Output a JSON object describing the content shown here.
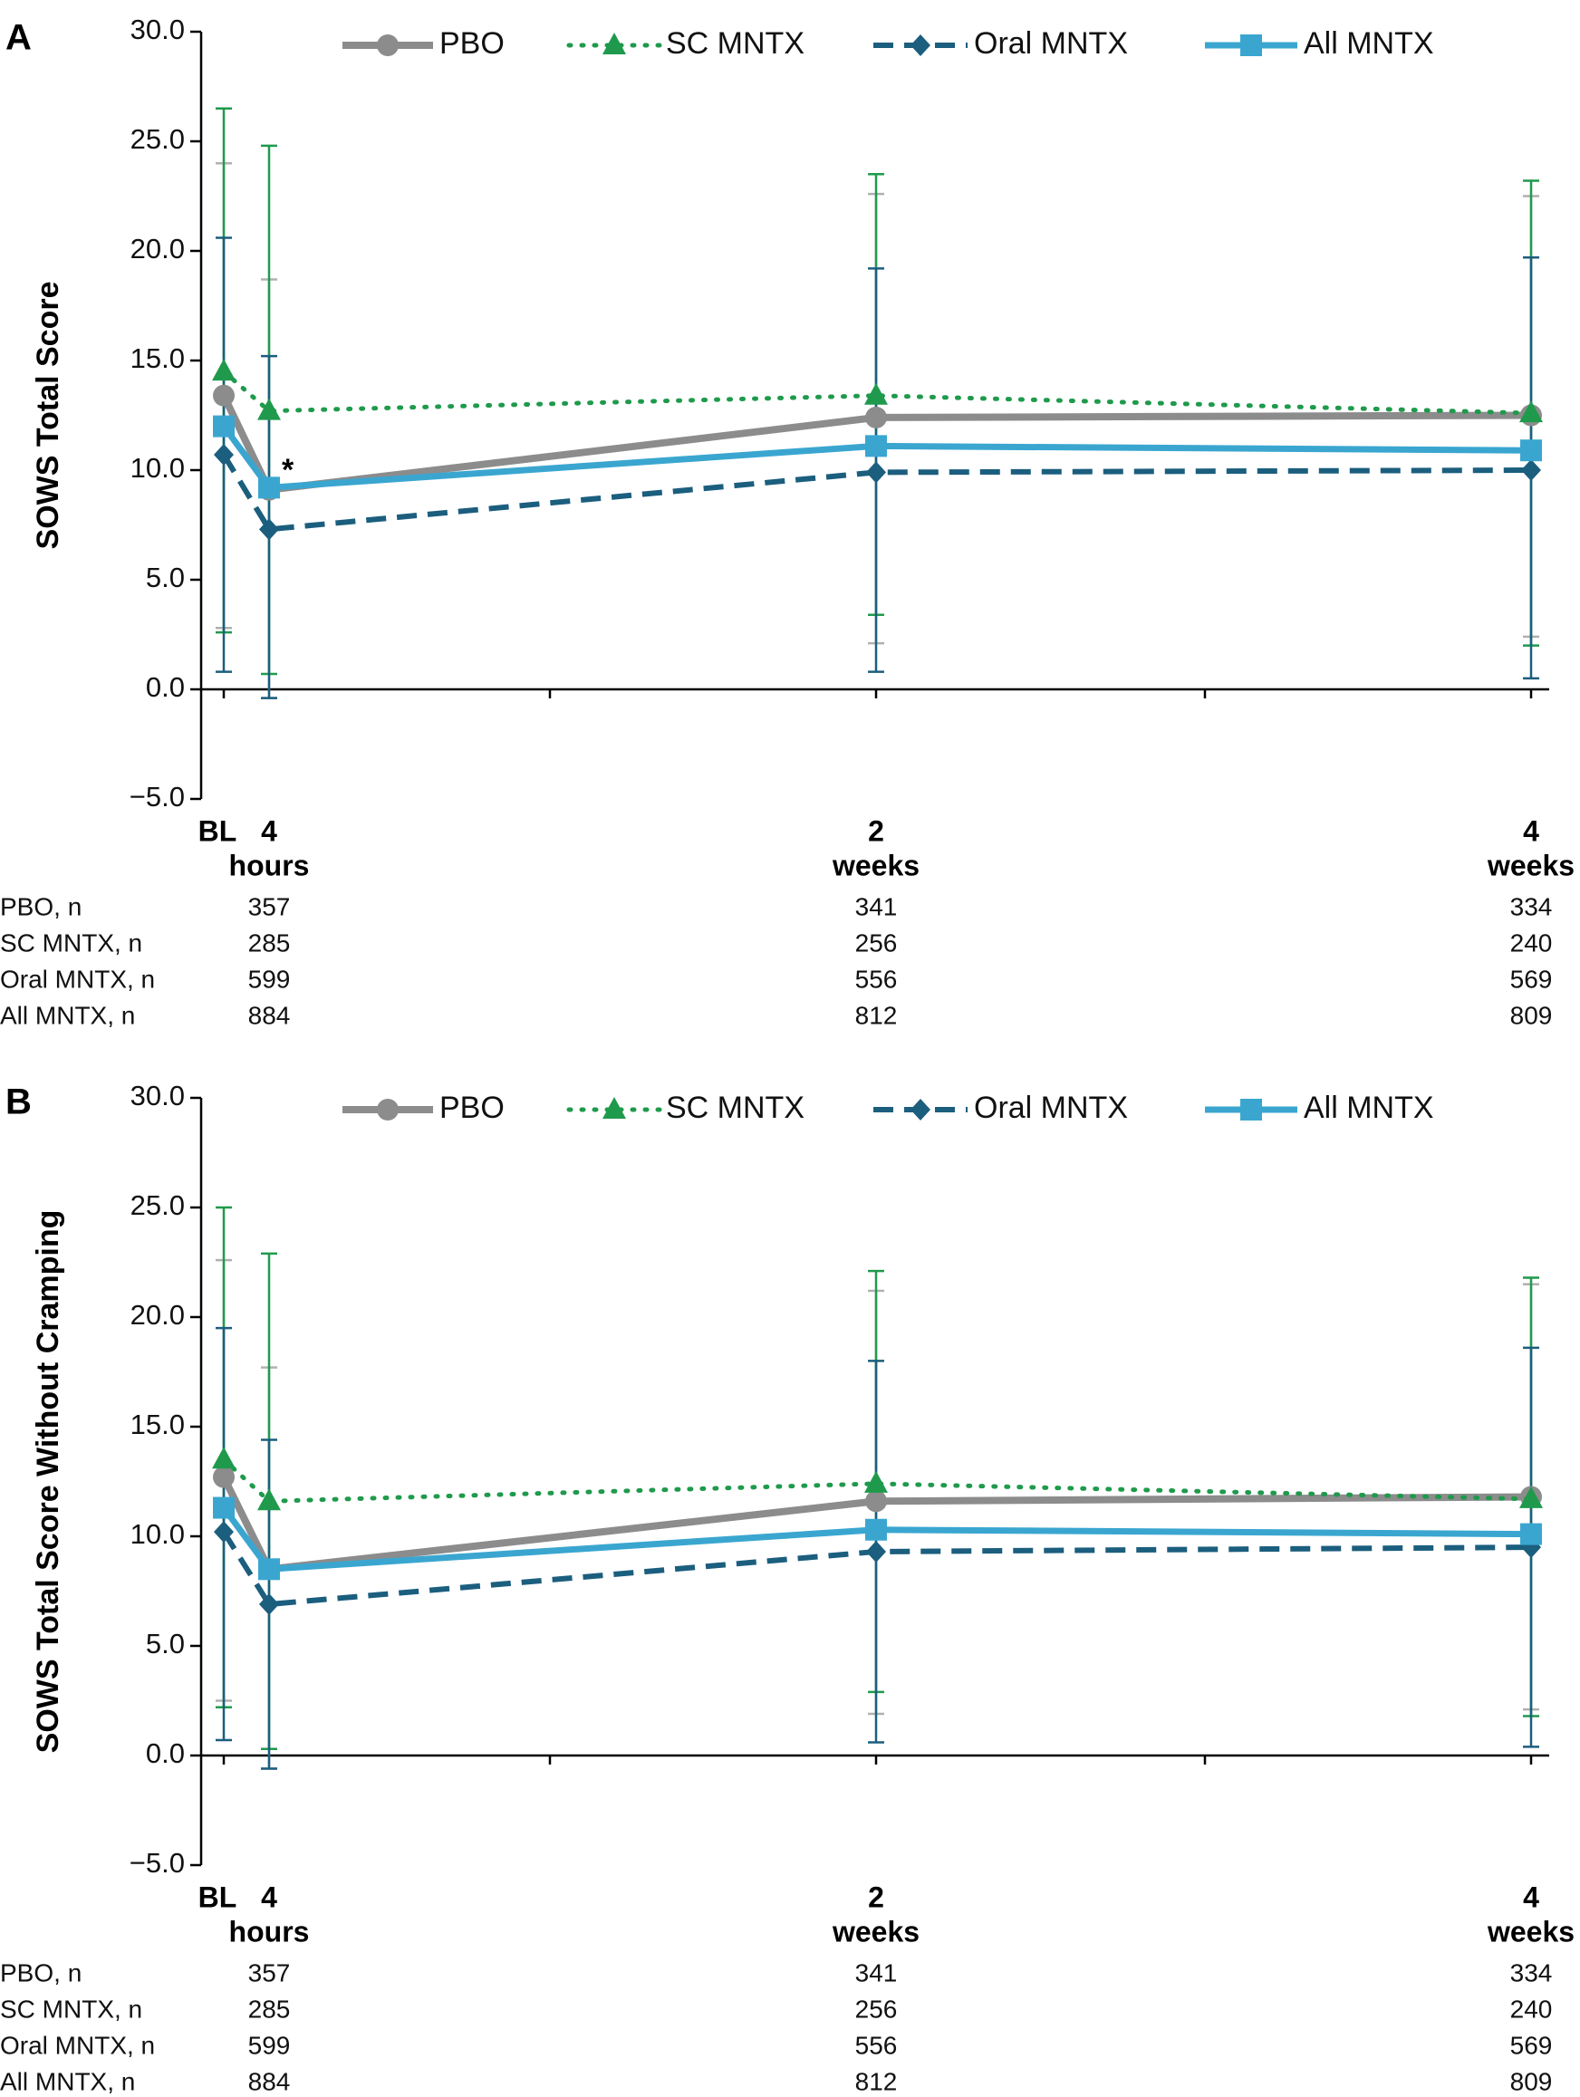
{
  "colors": {
    "pbo": "#8c8c8c",
    "pbo_err": "#b0b0b0",
    "sc": "#1f9a4c",
    "oral": "#1b5e7e",
    "all": "#3aa6d0",
    "axis": "#000000"
  },
  "chart_data": [
    {
      "panel": "A",
      "type": "line",
      "ylabel": "SOWS Total Score",
      "ylim": [
        -5,
        30
      ],
      "yticks": [
        "−5.0",
        "0.0",
        "5.0",
        "10.0",
        "15.0",
        "20.0",
        "25.0",
        "30.0"
      ],
      "ytick_values": [
        -5,
        0,
        5,
        10,
        15,
        20,
        25,
        30
      ],
      "categories": [
        {
          "key": "BL",
          "line1": "BL",
          "line2": ""
        },
        {
          "key": "4h",
          "line1": "4",
          "line2": "hours"
        },
        {
          "key": "2w",
          "line1": "2",
          "line2": "weeks"
        },
        {
          "key": "4w",
          "line1": "4",
          "line2": "weeks"
        }
      ],
      "series": [
        {
          "name": "PBO",
          "key": "pbo",
          "marker": "circle",
          "dash": "solid",
          "values": [
            13.4,
            9.1,
            12.4,
            12.5
          ],
          "err_high": [
            24.0,
            18.7,
            22.6,
            22.5
          ],
          "err_low": [
            2.8,
            -0.4,
            2.1,
            2.4
          ]
        },
        {
          "name": "SC MNTX",
          "key": "sc",
          "marker": "triangle",
          "dash": "dotted",
          "values": [
            14.5,
            12.7,
            13.4,
            12.6
          ],
          "err_high": [
            26.5,
            24.8,
            23.5,
            23.2
          ],
          "err_low": [
            2.6,
            0.7,
            3.4,
            2.0
          ]
        },
        {
          "name": "Oral MNTX",
          "key": "oral",
          "marker": "diamond",
          "dash": "dashed",
          "values": [
            10.7,
            7.3,
            9.9,
            10.0
          ],
          "err_high": [
            20.6,
            15.2,
            19.2,
            19.7
          ],
          "err_low": [
            0.8,
            -0.4,
            0.8,
            0.5
          ]
        },
        {
          "name": "All MNTX",
          "key": "all",
          "marker": "square",
          "dash": "solid",
          "values": [
            12.0,
            9.2,
            11.1,
            10.9
          ],
          "err_high": null,
          "err_low": null
        }
      ],
      "annotations": [
        {
          "text": "*",
          "category": "4h",
          "value": 10.0
        }
      ],
      "n_table": [
        {
          "label": "PBO, n",
          "values": [
            "357",
            "341",
            "334"
          ]
        },
        {
          "label": "SC MNTX, n",
          "values": [
            "285",
            "256",
            "240"
          ]
        },
        {
          "label": "Oral MNTX, n",
          "values": [
            "599",
            "556",
            "569"
          ]
        },
        {
          "label": "All MNTX, n",
          "values": [
            "884",
            "812",
            "809"
          ]
        }
      ]
    },
    {
      "panel": "B",
      "type": "line",
      "ylabel": "SOWS Total Score Without Cramping",
      "ylim": [
        -5,
        30
      ],
      "yticks": [
        "−5.0",
        "0.0",
        "5.0",
        "10.0",
        "15.0",
        "20.0",
        "25.0",
        "30.0"
      ],
      "ytick_values": [
        -5,
        0,
        5,
        10,
        15,
        20,
        25,
        30
      ],
      "categories": [
        {
          "key": "BL",
          "line1": "BL",
          "line2": ""
        },
        {
          "key": "4h",
          "line1": "4",
          "line2": "hours"
        },
        {
          "key": "2w",
          "line1": "2",
          "line2": "weeks"
        },
        {
          "key": "4w",
          "line1": "4",
          "line2": "weeks"
        }
      ],
      "series": [
        {
          "name": "PBO",
          "key": "pbo",
          "marker": "circle",
          "dash": "solid",
          "values": [
            12.7,
            8.5,
            11.6,
            11.8
          ],
          "err_high": [
            22.6,
            17.7,
            21.2,
            21.5
          ],
          "err_low": [
            2.5,
            -0.6,
            1.9,
            2.1
          ]
        },
        {
          "name": "SC MNTX",
          "key": "sc",
          "marker": "triangle",
          "dash": "dotted",
          "values": [
            13.5,
            11.6,
            12.4,
            11.7
          ],
          "err_high": [
            25.0,
            22.9,
            22.1,
            21.8
          ],
          "err_low": [
            2.2,
            0.3,
            2.9,
            1.8
          ]
        },
        {
          "name": "Oral MNTX",
          "key": "oral",
          "marker": "diamond",
          "dash": "dashed",
          "values": [
            10.2,
            6.9,
            9.3,
            9.5
          ],
          "err_high": [
            19.5,
            14.4,
            18.0,
            18.6
          ],
          "err_low": [
            0.7,
            -0.6,
            0.6,
            0.4
          ]
        },
        {
          "name": "All MNTX",
          "key": "all",
          "marker": "square",
          "dash": "solid",
          "values": [
            11.3,
            8.5,
            10.3,
            10.1
          ],
          "err_high": null,
          "err_low": null
        }
      ],
      "annotations": [],
      "n_table": [
        {
          "label": "PBO, n",
          "values": [
            "357",
            "341",
            "334"
          ]
        },
        {
          "label": "SC MNTX, n",
          "values": [
            "285",
            "256",
            "240"
          ]
        },
        {
          "label": "Oral MNTX, n",
          "values": [
            "599",
            "556",
            "569"
          ]
        },
        {
          "label": "All MNTX, n",
          "values": [
            "884",
            "812",
            "809"
          ]
        }
      ]
    }
  ]
}
